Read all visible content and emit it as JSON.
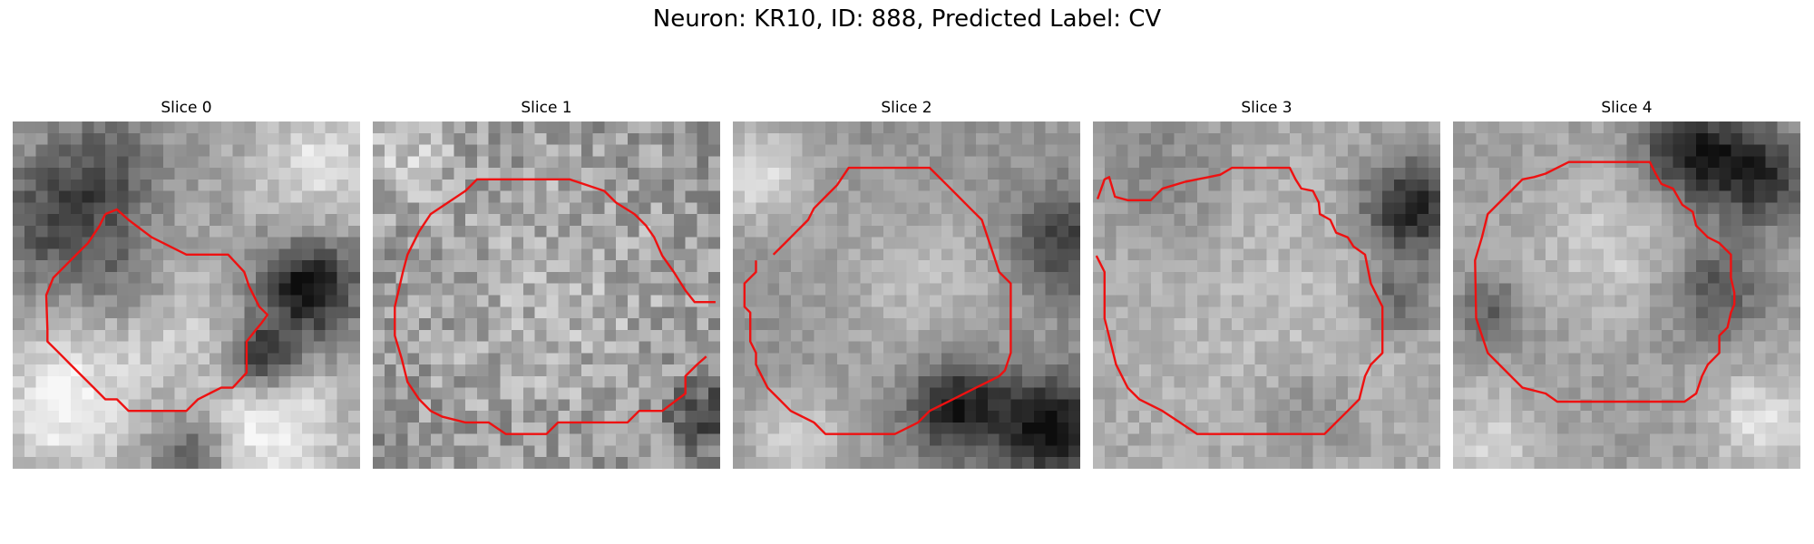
{
  "figure": {
    "title": "Neuron: KR10, ID: 888, Predicted Label: CV"
  },
  "panels": [
    {
      "title": "Slice 0"
    },
    {
      "title": "Slice 1"
    },
    {
      "title": "Slice 2"
    },
    {
      "title": "Slice 3"
    },
    {
      "title": "Slice 4"
    }
  ],
  "colors": {
    "background": "#ffffff",
    "contour": "#ee1111",
    "colormap": "grayscale"
  }
}
